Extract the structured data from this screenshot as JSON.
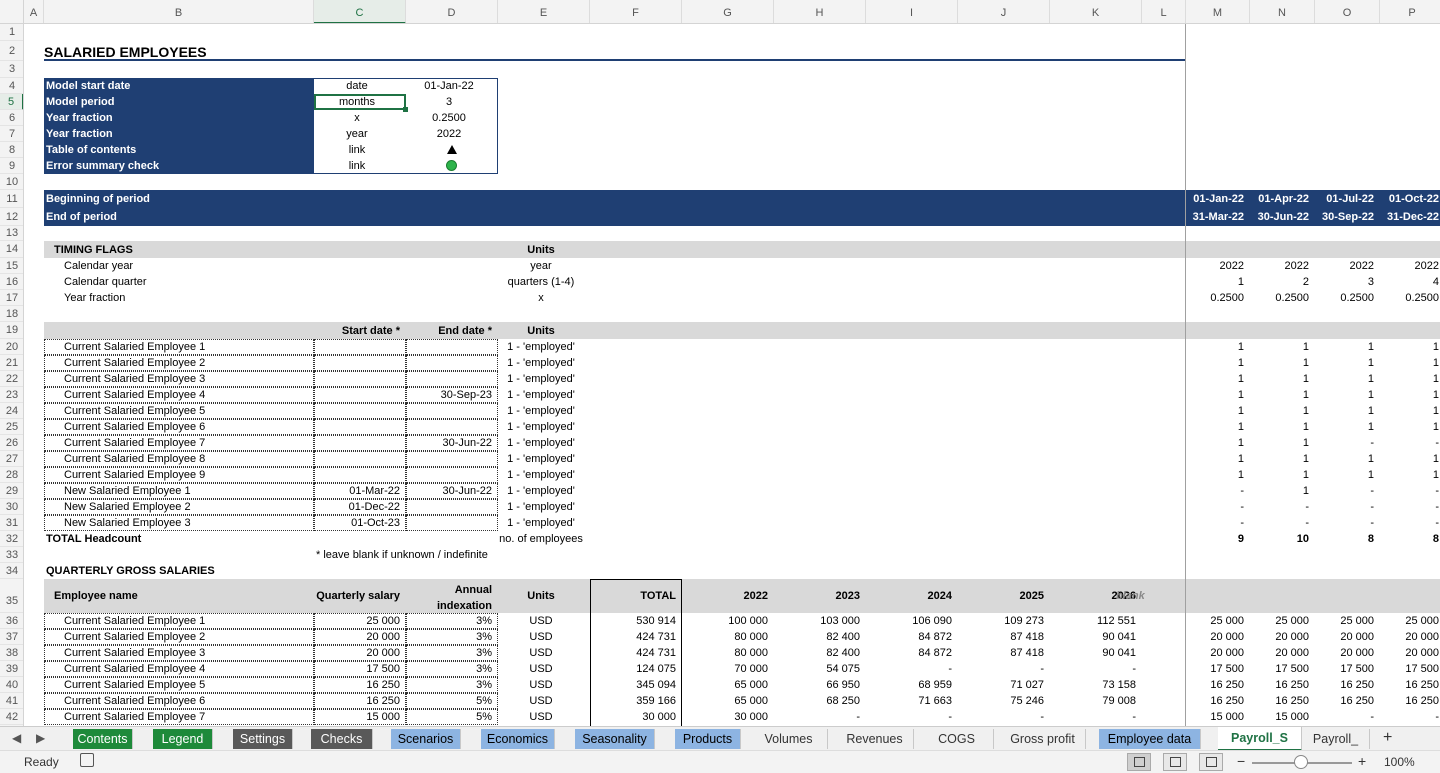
{
  "columns": [
    "A",
    "B",
    "C",
    "D",
    "E",
    "F",
    "G",
    "H",
    "I",
    "J",
    "K",
    "L",
    "M",
    "N",
    "O",
    "P"
  ],
  "selected_column": "C",
  "rows": [
    "1",
    "2",
    "3",
    "4",
    "5",
    "6",
    "7",
    "8",
    "9",
    "10",
    "11",
    "12",
    "13",
    "14",
    "15",
    "16",
    "17",
    "18",
    "19",
    "20",
    "21",
    "22",
    "23",
    "24",
    "25",
    "26",
    "27",
    "28",
    "29",
    "30",
    "31",
    "32",
    "33",
    "34",
    "35",
    "36",
    "37",
    "38",
    "39",
    "40",
    "41",
    "42"
  ],
  "selected_row": "5",
  "sheet_title": "SALARIED EMPLOYEES",
  "params": [
    {
      "label": "Model start date",
      "unit": "date",
      "value": "01-Jan-22"
    },
    {
      "label": "Model period",
      "unit": "months",
      "value": "3"
    },
    {
      "label": "Year fraction",
      "unit": "x",
      "value": "0.2500"
    },
    {
      "label": "Year fraction",
      "unit": "year",
      "value": "2022"
    },
    {
      "label": "Table of contents",
      "unit": "link",
      "value": "▲"
    },
    {
      "label": "Error summary check",
      "unit": "link",
      "value": ""
    }
  ],
  "period": {
    "begin_label": "Beginning of period",
    "end_label": "End of period",
    "begin_dates": [
      "01-Jan-22",
      "01-Apr-22",
      "01-Jul-22",
      "01-Oct-22"
    ],
    "end_dates": [
      "31-Mar-22",
      "30-Jun-22",
      "30-Sep-22",
      "31-Dec-22"
    ]
  },
  "timing": {
    "header": "TIMING FLAGS",
    "units_header": "Units",
    "rows": [
      {
        "label": "Calendar year",
        "unit": "year",
        "values": [
          "2022",
          "2022",
          "2022",
          "2022"
        ]
      },
      {
        "label": "Calendar quarter",
        "unit": "quarters (1-4)",
        "values": [
          "1",
          "2",
          "3",
          "4"
        ]
      },
      {
        "label": "Year fraction",
        "unit": "x",
        "values": [
          "0.2500",
          "0.2500",
          "0.2500",
          "0.2500"
        ]
      }
    ]
  },
  "employment": {
    "start_header": "Start date *",
    "end_header": "End date *",
    "units_header": "Units",
    "rows": [
      {
        "name": "Current Salaried Employee 1",
        "start": "",
        "end": "",
        "unit": "1 - 'employed'",
        "values": [
          "1",
          "1",
          "1",
          "1"
        ]
      },
      {
        "name": "Current Salaried Employee 2",
        "start": "",
        "end": "",
        "unit": "1 - 'employed'",
        "values": [
          "1",
          "1",
          "1",
          "1"
        ]
      },
      {
        "name": "Current Salaried Employee 3",
        "start": "",
        "end": "",
        "unit": "1 - 'employed'",
        "values": [
          "1",
          "1",
          "1",
          "1"
        ]
      },
      {
        "name": "Current Salaried Employee 4",
        "start": "",
        "end": "30-Sep-23",
        "unit": "1 - 'employed'",
        "values": [
          "1",
          "1",
          "1",
          "1"
        ]
      },
      {
        "name": "Current Salaried Employee 5",
        "start": "",
        "end": "",
        "unit": "1 - 'employed'",
        "values": [
          "1",
          "1",
          "1",
          "1"
        ]
      },
      {
        "name": "Current Salaried Employee 6",
        "start": "",
        "end": "",
        "unit": "1 - 'employed'",
        "values": [
          "1",
          "1",
          "1",
          "1"
        ]
      },
      {
        "name": "Current Salaried Employee 7",
        "start": "",
        "end": "30-Jun-22",
        "unit": "1 - 'employed'",
        "values": [
          "1",
          "1",
          "-",
          "-"
        ]
      },
      {
        "name": "Current Salaried Employee 8",
        "start": "",
        "end": "",
        "unit": "1 - 'employed'",
        "values": [
          "1",
          "1",
          "1",
          "1"
        ]
      },
      {
        "name": "Current Salaried Employee 9",
        "start": "",
        "end": "",
        "unit": "1 - 'employed'",
        "values": [
          "1",
          "1",
          "1",
          "1"
        ]
      },
      {
        "name": "New Salaried Employee 1",
        "start": "01-Mar-22",
        "end": "30-Jun-22",
        "unit": "1 - 'employed'",
        "values": [
          "-",
          "1",
          "-",
          "-"
        ]
      },
      {
        "name": "New Salaried Employee 2",
        "start": "01-Dec-22",
        "end": "",
        "unit": "1 - 'employed'",
        "values": [
          "-",
          "-",
          "-",
          "-"
        ]
      },
      {
        "name": "New Salaried Employee 3",
        "start": "01-Oct-23",
        "end": "",
        "unit": "1 - 'employed'",
        "values": [
          "-",
          "-",
          "-",
          "-"
        ]
      }
    ],
    "total_label": "TOTAL Headcount",
    "total_unit": "no. of employees",
    "total_values": [
      "9",
      "10",
      "8",
      "8"
    ],
    "footnote": "* leave blank if unknown / indefinite"
  },
  "salaries": {
    "header": "QUARTERLY GROSS SALARIES",
    "col_name": "Employee name",
    "col_salary": "Quarterly salary",
    "col_index": "Annual indexation",
    "col_units": "Units",
    "col_total": "TOTAL",
    "years": [
      "2022",
      "2023",
      "2024",
      "2025",
      "2026"
    ],
    "blank_label": "blank",
    "rows": [
      {
        "name": "Current Salaried Employee 1",
        "salary": "25 000",
        "index": "3%",
        "unit": "USD",
        "total": "530 914",
        "years": [
          "100 000",
          "103 000",
          "106 090",
          "109 273",
          "112 551"
        ],
        "q": [
          "25 000",
          "25 000",
          "25 000",
          "25 000"
        ]
      },
      {
        "name": "Current Salaried Employee 2",
        "salary": "20 000",
        "index": "3%",
        "unit": "USD",
        "total": "424 731",
        "years": [
          "80 000",
          "82 400",
          "84 872",
          "87 418",
          "90 041"
        ],
        "q": [
          "20 000",
          "20 000",
          "20 000",
          "20 000"
        ]
      },
      {
        "name": "Current Salaried Employee 3",
        "salary": "20 000",
        "index": "3%",
        "unit": "USD",
        "total": "424 731",
        "years": [
          "80 000",
          "82 400",
          "84 872",
          "87 418",
          "90 041"
        ],
        "q": [
          "20 000",
          "20 000",
          "20 000",
          "20 000"
        ]
      },
      {
        "name": "Current Salaried Employee 4",
        "salary": "17 500",
        "index": "3%",
        "unit": "USD",
        "total": "124 075",
        "years": [
          "70 000",
          "54 075",
          "-",
          "-",
          "-"
        ],
        "q": [
          "17 500",
          "17 500",
          "17 500",
          "17 500"
        ]
      },
      {
        "name": "Current Salaried Employee 5",
        "salary": "16 250",
        "index": "3%",
        "unit": "USD",
        "total": "345 094",
        "years": [
          "65 000",
          "66 950",
          "68 959",
          "71 027",
          "73 158"
        ],
        "q": [
          "16 250",
          "16 250",
          "16 250",
          "16 250"
        ]
      },
      {
        "name": "Current Salaried Employee 6",
        "salary": "16 250",
        "index": "5%",
        "unit": "USD",
        "total": "359 166",
        "years": [
          "65 000",
          "68 250",
          "71 663",
          "75 246",
          "79 008"
        ],
        "q": [
          "16 250",
          "16 250",
          "16 250",
          "16 250"
        ]
      },
      {
        "name": "Current Salaried Employee 7",
        "salary": "15 000",
        "index": "5%",
        "unit": "USD",
        "total": "30 000",
        "years": [
          "30 000",
          "-",
          "-",
          "-",
          "-"
        ],
        "q": [
          "15 000",
          "15 000",
          "-",
          "-"
        ]
      }
    ]
  },
  "tabs": [
    {
      "label": "Contents",
      "bg": "#1e8a3a",
      "fg": "#ffffff"
    },
    {
      "label": "Legend",
      "bg": "#1e8a3a",
      "fg": "#ffffff"
    },
    {
      "label": "Settings",
      "bg": "#595959",
      "fg": "#ffffff"
    },
    {
      "label": "Checks",
      "bg": "#595959",
      "fg": "#ffffff"
    },
    {
      "label": "Scenarios",
      "bg": "#8db4e2",
      "fg": "#000000"
    },
    {
      "label": "Economics",
      "bg": "#8db4e2",
      "fg": "#000000"
    },
    {
      "label": "Seasonality",
      "bg": "#8db4e2",
      "fg": "#000000"
    },
    {
      "label": "Products",
      "bg": "#8db4e2",
      "fg": "#000000"
    },
    {
      "label": "Volumes",
      "bg": "",
      "fg": "#333333"
    },
    {
      "label": "Revenues",
      "bg": "",
      "fg": "#333333"
    },
    {
      "label": "COGS",
      "bg": "",
      "fg": "#333333"
    },
    {
      "label": "Gross profit",
      "bg": "",
      "fg": "#333333"
    },
    {
      "label": "Employee data",
      "bg": "#8db4e2",
      "fg": "#000000"
    },
    {
      "label": "Payroll_S",
      "bg": "#ffffff",
      "fg": "#1f7244"
    },
    {
      "label": "Payroll_",
      "bg": "",
      "fg": "#333333"
    }
  ],
  "active_tab": "Payroll_S",
  "add_sheet": "+",
  "status": {
    "ready": "Ready",
    "zoom": "100%",
    "minus": "−",
    "plus": "+"
  },
  "colors": {
    "navy": "#1f3f73",
    "grey_band": "#d9d9d9",
    "green": "#1f7244"
  }
}
